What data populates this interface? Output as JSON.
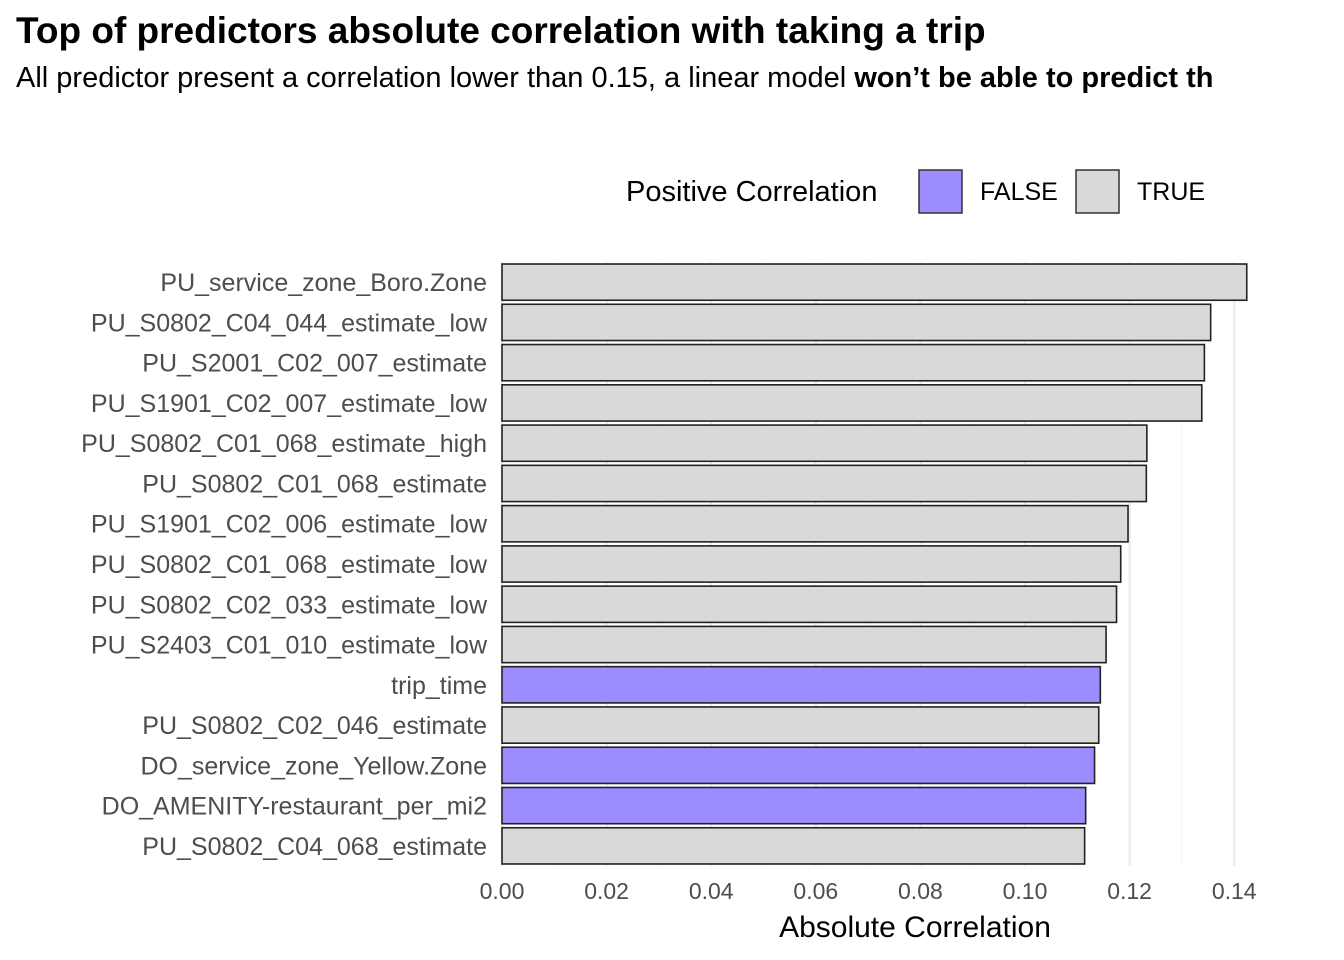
{
  "chart_data": {
    "type": "bar",
    "orientation": "horizontal",
    "title": "Top of predictors absolute correlation with taking a trip",
    "subtitle_normal": "All predictor present a correlation lower than 0.15, a linear model ",
    "subtitle_bold": "won’t be able to predict th",
    "xlabel": "Absolute Correlation",
    "ylabel": "",
    "xlim": [
      0,
      0.145
    ],
    "x_ticks": [
      "0.00",
      "0.02",
      "0.04",
      "0.06",
      "0.08",
      "0.10",
      "0.12",
      "0.14"
    ],
    "grid": true,
    "legend": {
      "title": "Positive Correlation",
      "placement": "top",
      "entries": [
        {
          "label": "FALSE",
          "color": "#9b8cff"
        },
        {
          "label": "TRUE",
          "color": "#d9d9d9"
        }
      ]
    },
    "categories": [
      "PU_service_zone_Boro.Zone",
      "PU_S0802_C04_044_estimate_low",
      "PU_S2001_C02_007_estimate",
      "PU_S1901_C02_007_estimate_low",
      "PU_S0802_C01_068_estimate_high",
      "PU_S0802_C01_068_estimate",
      "PU_S1901_C02_006_estimate_low",
      "PU_S0802_C01_068_estimate_low",
      "PU_S0802_C02_033_estimate_low",
      "PU_S2403_C01_010_estimate_low",
      "trip_time",
      "PU_S0802_C02_046_estimate",
      "DO_service_zone_Yellow.Zone",
      "DO_AMENITY-restaurant_per_mi2",
      "PU_S0802_C04_068_estimate"
    ],
    "values": [
      0.1424,
      0.1355,
      0.1343,
      0.1338,
      0.1233,
      0.1232,
      0.1197,
      0.1183,
      0.1175,
      0.1155,
      0.1144,
      0.1141,
      0.1133,
      0.1116,
      0.1114
    ],
    "positive": [
      "TRUE",
      "TRUE",
      "TRUE",
      "TRUE",
      "TRUE",
      "TRUE",
      "TRUE",
      "TRUE",
      "TRUE",
      "TRUE",
      "FALSE",
      "TRUE",
      "FALSE",
      "FALSE",
      "TRUE"
    ]
  }
}
